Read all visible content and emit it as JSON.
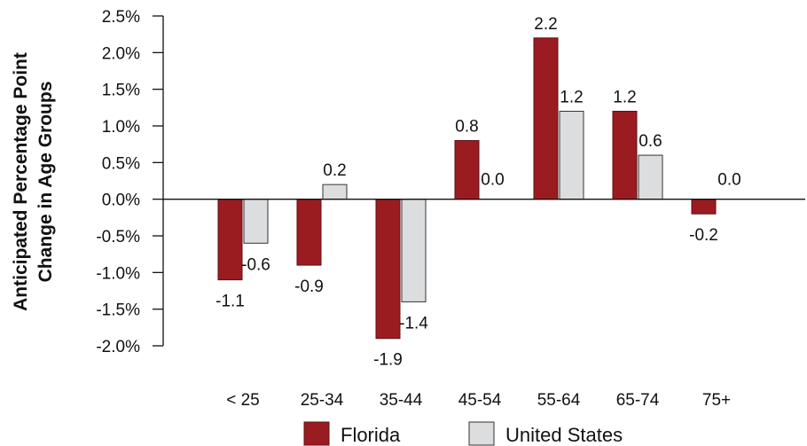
{
  "chart_data": {
    "type": "bar",
    "title": "",
    "xlabel": "",
    "ylabel_lines": [
      "Anticipated Percentage Point",
      "Change in Age Groups"
    ],
    "categories": [
      "< 25",
      "25-34",
      "35-44",
      "45-54",
      "55-64",
      "65-74",
      "75+"
    ],
    "series": [
      {
        "name": "Florida",
        "color": "#9b1c20",
        "values": [
          -1.1,
          -0.9,
          -1.9,
          0.8,
          2.2,
          1.2,
          -0.2
        ],
        "labels": [
          "-1.1",
          "-0.9",
          "-1.9",
          "0.8",
          "2.2",
          "1.2",
          "-0.2"
        ]
      },
      {
        "name": "United States",
        "color": "#dcdddf",
        "values": [
          -0.6,
          0.2,
          -1.4,
          0.0,
          1.2,
          0.6,
          0.0
        ],
        "labels": [
          "-0.6",
          "0.2",
          "-1.4",
          "0.0",
          "1.2",
          "0.6",
          "0.0"
        ]
      }
    ],
    "ylim": [
      -2.0,
      2.5
    ],
    "yticks": [
      2.5,
      2.0,
      1.5,
      1.0,
      0.5,
      0.0,
      -0.5,
      -1.0,
      -1.5,
      -2.0
    ],
    "ytick_labels": [
      "2.5%",
      "2.0%",
      "1.5%",
      "1.0%",
      "0.5%",
      "0.0%",
      "-0.5%",
      "-1.0%",
      "-1.5%",
      "-2.0%"
    ],
    "grid": false,
    "legend_position": "bottom-center"
  }
}
